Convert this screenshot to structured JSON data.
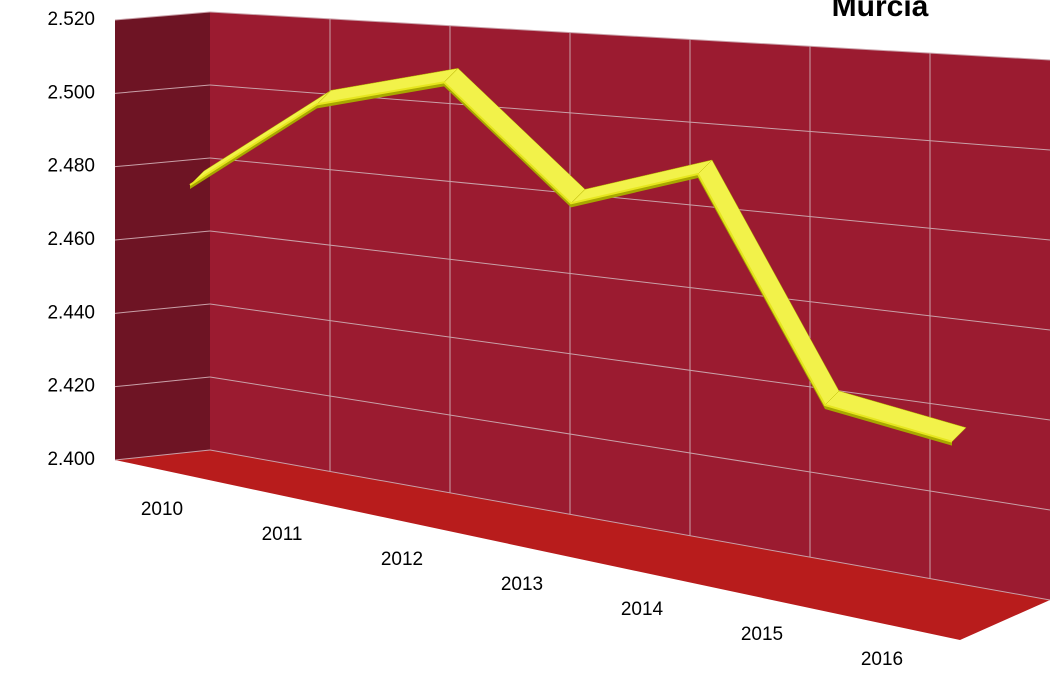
{
  "chart_data": {
    "type": "line3d",
    "title": "Murcia",
    "categories": [
      "2010",
      "2011",
      "2012",
      "2013",
      "2014",
      "2015",
      "2016"
    ],
    "series": [
      {
        "color": "#e6e61e",
        "values": [
          2475,
          2497,
          2503,
          2470,
          2478,
          2415,
          2405
        ]
      }
    ],
    "ylim": [
      2400,
      2520
    ],
    "yticks": [
      {
        "value": 2400,
        "label": "2.400"
      },
      {
        "value": 2420,
        "label": "2.420"
      },
      {
        "value": 2440,
        "label": "2.440"
      },
      {
        "value": 2460,
        "label": "2.460"
      },
      {
        "value": 2480,
        "label": "2.480"
      },
      {
        "value": 2500,
        "label": "2.500"
      },
      {
        "value": 2520,
        "label": "2.520"
      }
    ],
    "grid": true
  }
}
